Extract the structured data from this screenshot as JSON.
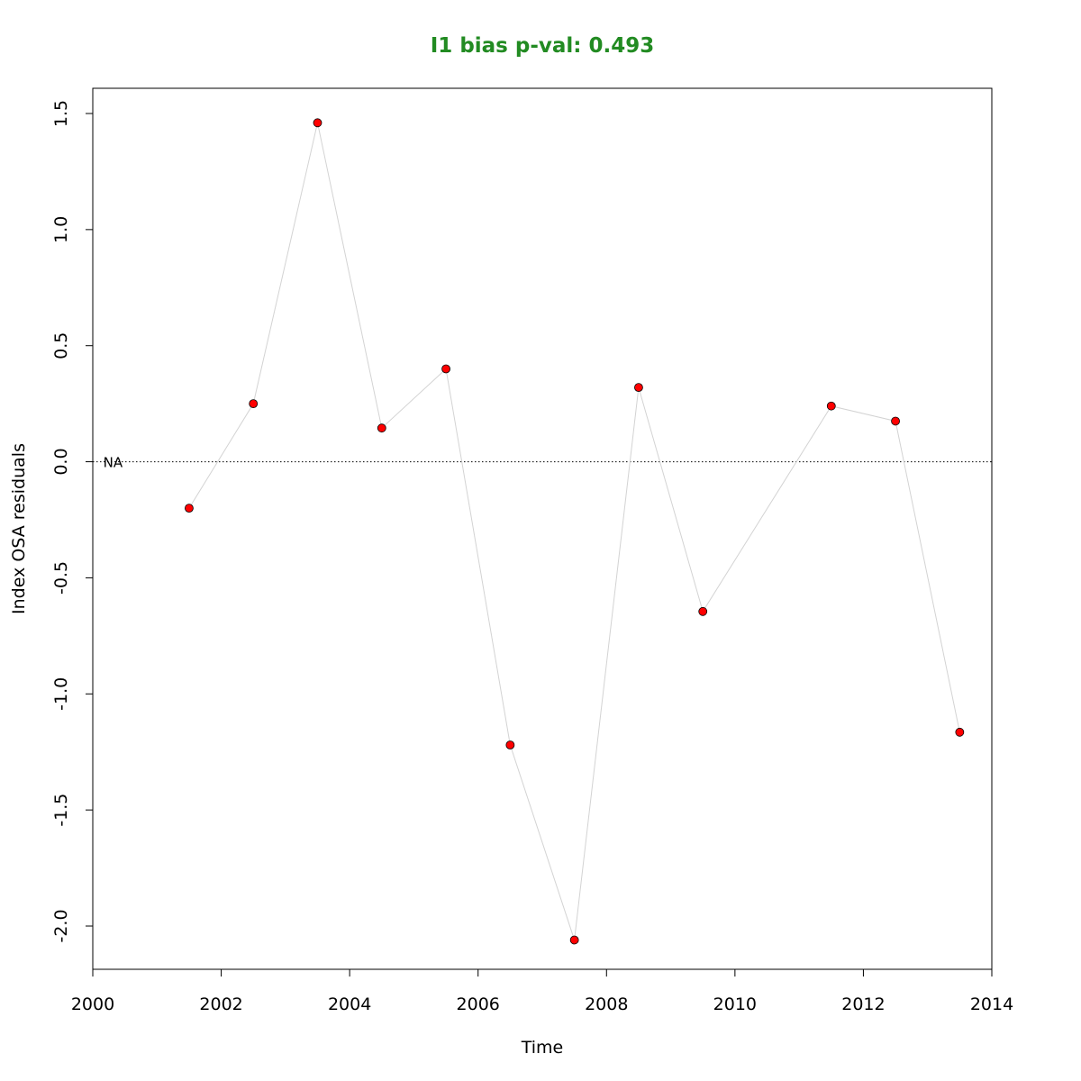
{
  "chart_data": {
    "type": "scatter",
    "title": "I1 bias p-val: 0.493",
    "title_color": "#228B22",
    "xlabel": "Time",
    "ylabel": "Index OSA residuals",
    "xlim": [
      2000,
      2014
    ],
    "ylim": [
      -2.2,
      1.6
    ],
    "x_ticks": [
      2000,
      2002,
      2004,
      2006,
      2008,
      2010,
      2012,
      2014
    ],
    "x_tick_labels": [
      "2000",
      "2002",
      "2004",
      "2006",
      "2008",
      "2010",
      "2012",
      "2014"
    ],
    "y_ticks": [
      -2.0,
      -1.5,
      -1.0,
      -0.5,
      0.0,
      0.5,
      1.0,
      1.5
    ],
    "y_tick_labels": [
      "-2.0",
      "-1.5",
      "-1.0",
      "-0.5",
      "0.0",
      "0.5",
      "1.0",
      "1.5"
    ],
    "reference_line": 0,
    "annotation": {
      "text": "NA",
      "x": 2000.5,
      "y": 0
    },
    "series": [
      {
        "x": [
          2001.5,
          2002.5,
          2003.5,
          2004.5,
          2005.5,
          2006.5,
          2007.5,
          2008.5,
          2009.5,
          2011.5,
          2012.5,
          2013.5
        ],
        "y": [
          -0.2,
          0.25,
          1.46,
          0.145,
          0.4,
          -1.22,
          -2.06,
          0.32,
          -0.645,
          0.24,
          0.175,
          -1.165
        ],
        "point_color": "#FF0000",
        "line_color": "#D3D3D3"
      }
    ]
  }
}
